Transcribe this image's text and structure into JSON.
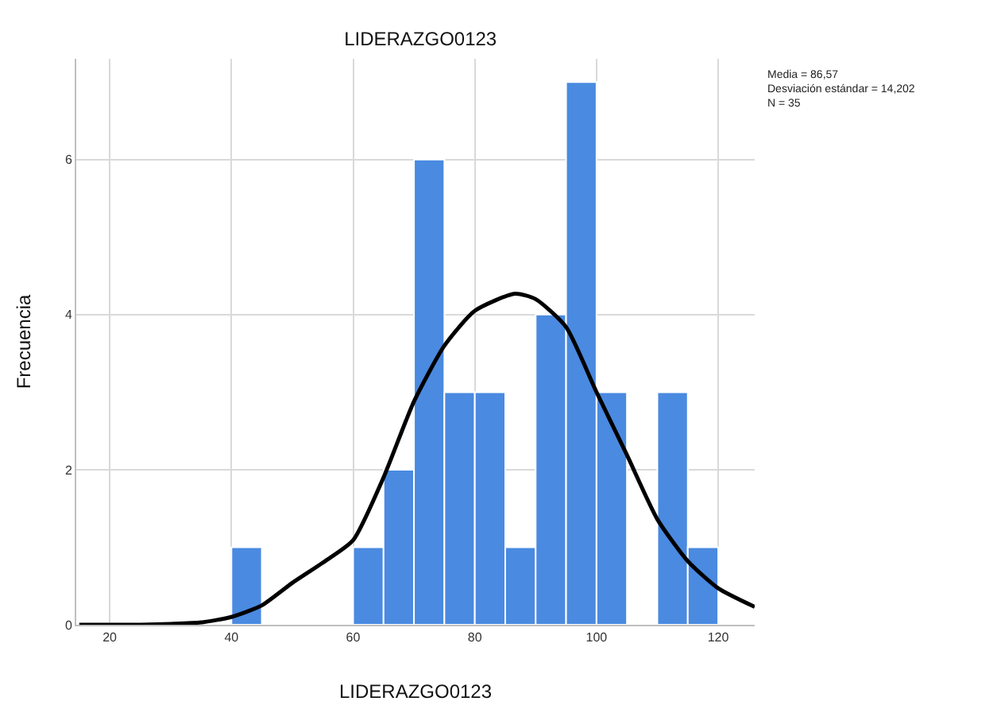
{
  "chart_data": {
    "type": "histogram",
    "title": "LIDERAZGO0123",
    "xlabel": "LIDERAZGO0123",
    "ylabel": "Frecuencia",
    "bins": [
      40,
      45,
      50,
      55,
      60,
      65,
      70,
      75,
      80,
      85,
      90,
      95,
      100,
      105,
      110,
      115,
      120
    ],
    "values": [
      1,
      0,
      0,
      0,
      1,
      2,
      6,
      3,
      3,
      1,
      4,
      7,
      3,
      0,
      3,
      1
    ],
    "color": "#4a8ae0",
    "series": [
      {
        "type": "line",
        "color": "#000000",
        "x": [
          15,
          20,
          25,
          30,
          35,
          40,
          45,
          50,
          55,
          60,
          65,
          70,
          75,
          80,
          86.6,
          90,
          95,
          100,
          105,
          110,
          115,
          120,
          126
        ],
        "values": [
          0,
          0,
          0,
          0.01,
          0.03,
          0.1,
          0.25,
          0.54,
          0.8,
          1.09,
          1.9,
          2.88,
          3.6,
          4.05,
          4.27,
          4.2,
          3.84,
          3.0,
          2.19,
          1.36,
          0.82,
          0.47,
          0.23
        ]
      }
    ],
    "xlim": [
      14.5,
      126
    ],
    "xticks": [
      20,
      40,
      60,
      80,
      100,
      120
    ],
    "ylim": [
      0,
      7.3
    ],
    "yticks": [
      0,
      2,
      4,
      6
    ],
    "grid": true,
    "marker": "none",
    "line_style": "solid",
    "annotations": [
      "Media = 86,57\nDesviación estándar = 14,202\nN = 35"
    ]
  }
}
